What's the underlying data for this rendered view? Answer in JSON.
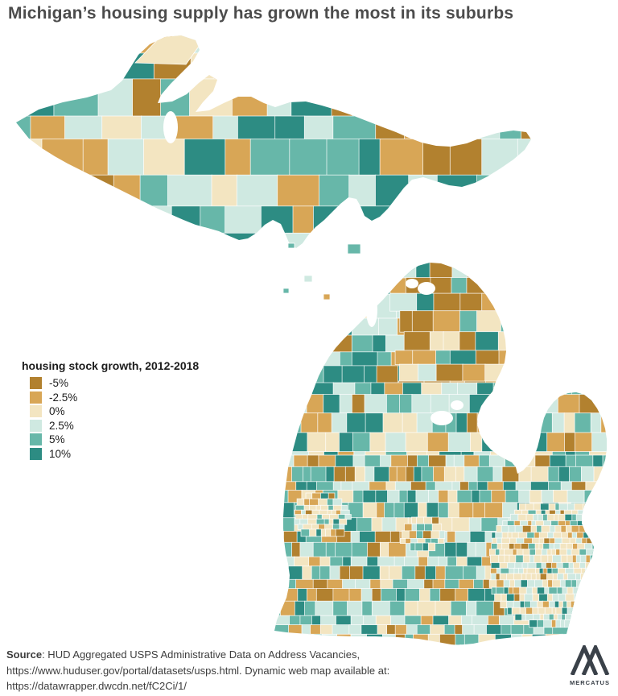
{
  "title": "Michigan’s housing supply has grown the most in its suburbs",
  "legend": {
    "title": "housing stock growth, 2012-2018",
    "items": [
      {
        "label": "-5%",
        "color": "#b2812f"
      },
      {
        "label": "-2.5%",
        "color": "#d8a656"
      },
      {
        "label": "0%",
        "color": "#f3e5c1"
      },
      {
        "label": "2.5%",
        "color": "#cfe9e1"
      },
      {
        "label": "5%",
        "color": "#67b7a9"
      },
      {
        "label": "10%",
        "color": "#2d8c83"
      }
    ]
  },
  "chart_data": {
    "type": "choropleth-map",
    "region": "Michigan",
    "title": "housing stock growth, 2012-2018",
    "bins": [
      "-5%",
      "-2.5%",
      "0%",
      "2.5%",
      "5%",
      "10%"
    ],
    "bin_colors": [
      "#b2812f",
      "#d8a656",
      "#f3e5c1",
      "#cfe9e1",
      "#67b7a9",
      "#2d8c83"
    ],
    "legend_position": "middle-left",
    "background": "#ffffff",
    "boundary_color": "#ffffff"
  },
  "footer": {
    "source_label": "Source",
    "line1_rest": ": HUD Aggregated USPS Administrative Data on Address Vacancies,",
    "line2": "https://www.huduser.gov/portal/datasets/usps.html. Dynamic web map available at:",
    "line3": "https://datawrapper.dwcdn.net/fC2Ci/1/"
  },
  "logo": {
    "text": "MERCATUS",
    "color": "#3a4149"
  }
}
